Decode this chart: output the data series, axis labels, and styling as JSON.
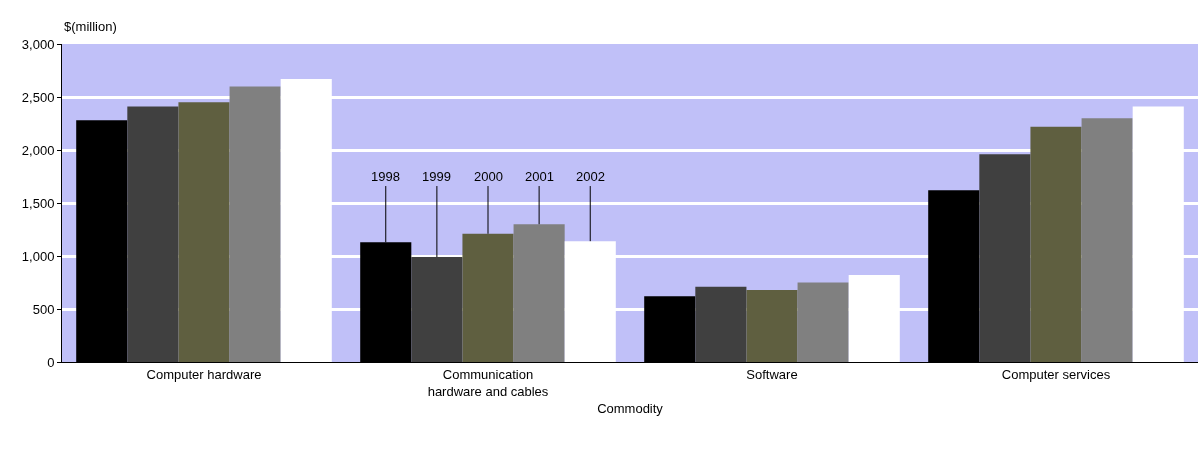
{
  "chart_data": {
    "type": "bar",
    "xlabel": "Commodity",
    "ylabel": "$(million)",
    "categories": [
      "Computer hardware",
      "Communication hardware and cables",
      "Software",
      "Computer services"
    ],
    "series": [
      {
        "name": "1998",
        "color": "#000000",
        "values": [
          2280,
          1130,
          620,
          1620
        ]
      },
      {
        "name": "1999",
        "color": "#404040",
        "values": [
          2410,
          990,
          710,
          1960
        ]
      },
      {
        "name": "2000",
        "color": "#5f5f40",
        "values": [
          2450,
          1210,
          680,
          2220
        ]
      },
      {
        "name": "2001",
        "color": "#808080",
        "values": [
          2600,
          1300,
          750,
          2300
        ]
      },
      {
        "name": "2002",
        "color": "#ffffff",
        "values": [
          2670,
          1140,
          820,
          2410
        ]
      }
    ],
    "ylim": [
      0,
      3000
    ],
    "yticks": [
      {
        "value": 0,
        "label": "0"
      },
      {
        "value": 500,
        "label": "500"
      },
      {
        "value": 1000,
        "label": "1,000"
      },
      {
        "value": 1500,
        "label": "1,500"
      },
      {
        "value": 2000,
        "label": "2,000"
      },
      {
        "value": 2500,
        "label": "2,500"
      },
      {
        "value": 3000,
        "label": "3,000"
      }
    ],
    "grid": "y",
    "legend": false
  }
}
